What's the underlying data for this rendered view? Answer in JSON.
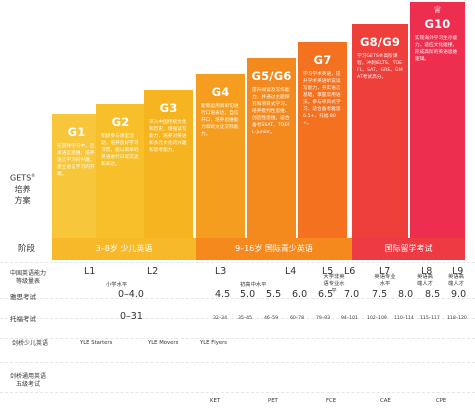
{
  "gets_label": {
    "line1": "GETS",
    "mark": "®",
    "line2": "培养",
    "line3": "方案"
  },
  "columns": [
    {
      "name": "G1",
      "color": "#f8c63a",
      "desc": "在游戏学习中，启发语言思维，培养语言学习的兴趣，建立语言学习的开端。"
    },
    {
      "name": "G2",
      "color": "#f7bf2a",
      "desc": "积极参与课堂活动，培养良好学习习惯，能以简单的英语进行日常交流和表达。"
    },
    {
      "name": "G3",
      "color": "#f7b421",
      "desc": "深入中国传统文化和历史，增强读写能力，培养对英语和多元文化的兴趣和思考能力。"
    },
    {
      "name": "G4",
      "color": "#f59d1f",
      "desc": "能够运用简单句进行口语表达，自信开口，培养思维能力和跨文化交际能力。"
    },
    {
      "name": "G5/G6",
      "color": "#f48a1d",
      "desc": "提升阅读及写作能力，并通过主题探究和项目式学习，培养批判性思维、创造性思维。适合备考SSAT、TOEFL-Junior。"
    },
    {
      "name": "G7",
      "color": "#f3711f",
      "desc": "学习学术英语，提升学术英语听说读写能力，夯实语言基础，掌握常用语法，参与项目式学习，适合备考雅思 6.5+、托福 80+。"
    },
    {
      "name": "G8/G9",
      "color": "#ef3f3a",
      "desc": "学习GETS®高阶课程，冲刺IELTS、TOEFL、SAT、GRE、GMAT考试高分。"
    },
    {
      "name": "G10",
      "color": "#ee2e4f",
      "desc": "实现海外学习生存能力，适应文化碰撞，形成高阶的英语思维逻辑。"
    }
  ],
  "stages": {
    "label": "阶段",
    "items": [
      {
        "text": "3–8岁 少儿英语",
        "color": "#f7b92a"
      },
      {
        "text": "9–16岁 国际青少英语",
        "color": "#f5891e"
      },
      {
        "text": "国际留学考试",
        "color": "#ee3a42"
      }
    ]
  },
  "row_labels": {
    "levels": "中国英语能力等级量表",
    "ielts": "雅思考试",
    "toefl": "托福考试",
    "cambridge_young": "剑桥少儿英语",
    "cambridge_main": "剑桥通用英语五级考试"
  },
  "levels": [
    "L1",
    "L2",
    "L3",
    "L4",
    "L5",
    "L6",
    "L7",
    "L8",
    "L9"
  ],
  "level_descs": [
    "小学水平",
    "初高中水平",
    "大学非英语专业水平",
    "英语专业水平",
    "英语高端人才",
    "英语高端人才"
  ],
  "ielts": [
    "0–4.0",
    "4.5",
    "5.0",
    "5.5",
    "6.0",
    "6.5",
    "7.0",
    "7.5",
    "8.0",
    "8.5",
    "9.0"
  ],
  "toefl": [
    "0–31",
    "32–34",
    "35–45",
    "46–59",
    "60–78",
    "79–93",
    "94–101",
    "102–109",
    "110–114",
    "115–117",
    "118–120"
  ],
  "cambridge_young": [
    "YLE Starters",
    "YLE Movers",
    "YLE Flyers"
  ],
  "cambridge_main": [
    "KET",
    "PET",
    "FCE",
    "CAE",
    "CPE"
  ]
}
